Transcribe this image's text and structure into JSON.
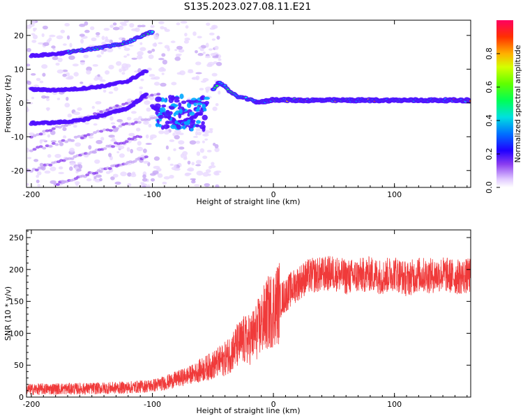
{
  "figure_title": "S135.2023.027.08.11.E21",
  "colors": {
    "snr_line": "#f03a3a",
    "background": "#ffffff",
    "colormap": [
      "#e8d8ff",
      "#c7a8f5",
      "#8a3cf0",
      "#5010ff",
      "#0000ff",
      "#00aaff",
      "#00e6e6",
      "#00ff55",
      "#d4ff00",
      "#ffcc00",
      "#ff4400",
      "#ff0060"
    ]
  },
  "chart_data": [
    {
      "type": "heatmap",
      "title": "",
      "xlabel": "Height of straight line (km)",
      "ylabel": "Frequency (Hz)",
      "xlim": [
        -204,
        163
      ],
      "ylim": [
        -25,
        24.5
      ],
      "xticks": [
        -200,
        -100,
        0,
        100
      ],
      "yticks": [
        20,
        10,
        0,
        -10,
        -20
      ],
      "grid": false,
      "colorbar": {
        "label": "Normalized spectral amplitude",
        "range": [
          0,
          1
        ],
        "ticks": [
          "0.0",
          "0.2",
          "0.4",
          "0.6",
          "0.8"
        ]
      },
      "ridges": [
        {
          "x": [
            -200,
            -180,
            -160,
            -140,
            -120,
            -105,
            -100
          ],
          "y": [
            14,
            14.5,
            15.5,
            16.5,
            18,
            20.5,
            21
          ]
        },
        {
          "x": [
            -200,
            -180,
            -160,
            -140,
            -120,
            -105
          ],
          "y": [
            4,
            3.8,
            4.2,
            5,
            6.5,
            9.5
          ]
        },
        {
          "x": [
            -200,
            -180,
            -160,
            -140,
            -120,
            -105
          ],
          "y": [
            -6,
            -5.8,
            -5.2,
            -3.5,
            -1.5,
            2.5
          ]
        },
        {
          "x": [
            -100,
            -90,
            -80,
            -70,
            -60,
            -55
          ],
          "y": [
            -1,
            -3,
            -6,
            -5,
            -3,
            0
          ]
        },
        {
          "x": [
            -50,
            -45,
            -40,
            -35,
            -30,
            -25,
            -20,
            -15,
            -10,
            0,
            20,
            60,
            100,
            163
          ],
          "y": [
            4,
            6,
            5,
            3,
            2,
            1.5,
            1,
            0.5,
            0.2,
            1,
            0.8,
            0.8,
            0.8,
            0.8
          ]
        }
      ]
    },
    {
      "type": "line",
      "title": "",
      "xlabel": "Height of straight line (km)",
      "ylabel": "SNR (10 * v/v)",
      "xlim": [
        -204,
        163
      ],
      "ylim": [
        0,
        262
      ],
      "xticks": [
        -200,
        -100,
        0,
        100
      ],
      "yticks": [
        0,
        50,
        100,
        150,
        200,
        250
      ],
      "grid": false,
      "series": [
        {
          "x": [
            -204,
            -180,
            -160,
            -140,
            -120,
            -100,
            -90,
            -80,
            -70,
            -60,
            -50,
            -40,
            -35,
            -30,
            -25,
            -20,
            -15,
            -10,
            -5,
            0,
            5,
            10,
            15,
            20,
            25,
            30,
            40,
            50,
            60,
            70,
            80,
            90,
            100,
            110,
            120,
            130,
            140,
            150,
            163
          ],
          "values": [
            12,
            13,
            13,
            14,
            15,
            18,
            22,
            28,
            34,
            42,
            50,
            60,
            70,
            80,
            88,
            90,
            100,
            115,
            130,
            140,
            150,
            160,
            170,
            178,
            185,
            190,
            192,
            195,
            188,
            190,
            193,
            188,
            195,
            185,
            192,
            190,
            193,
            188,
            190
          ]
        }
      ]
    }
  ]
}
